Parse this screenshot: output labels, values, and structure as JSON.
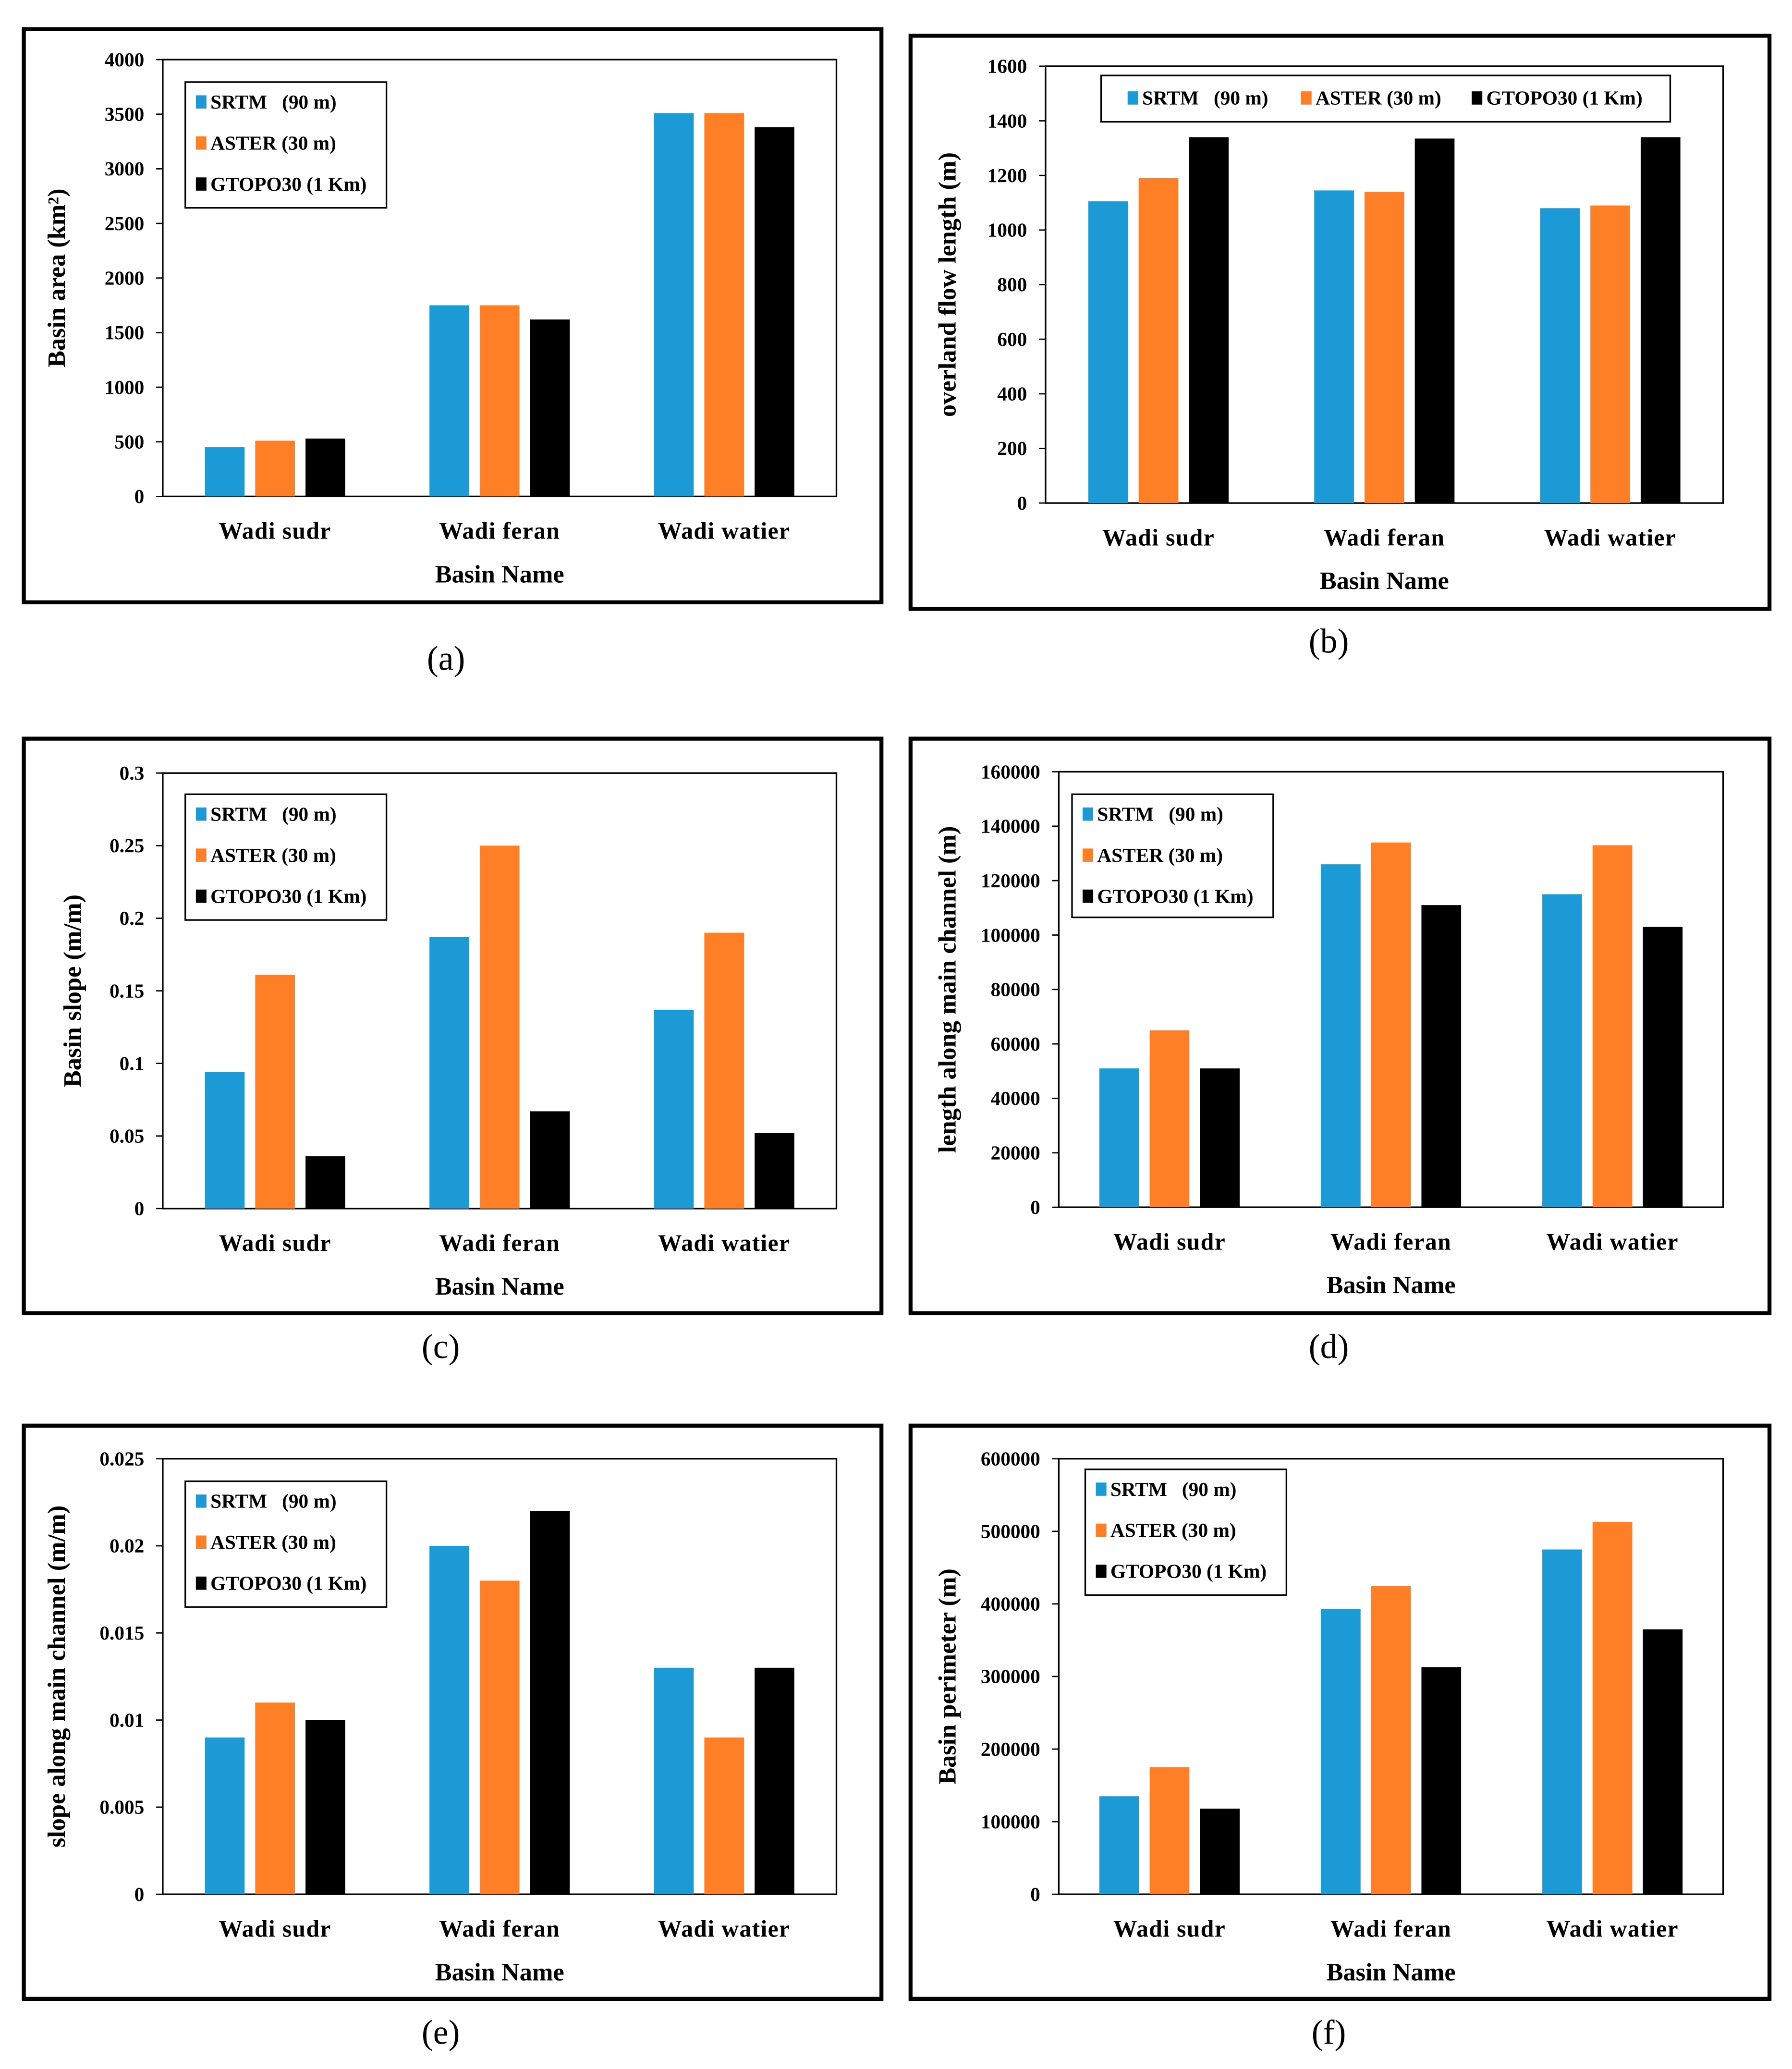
{
  "colors": {
    "SRTM": "#1B9AD6",
    "ASTER": "#FF7F27",
    "GTOPO30": "#000000"
  },
  "legend": [
    "SRTM   (90 m)",
    "ASTER (30 m)",
    "GTOPO30 (1 Km)"
  ],
  "chart_data": [
    {
      "panel": "(a)",
      "type": "bar",
      "categories": [
        "Wadi sudr",
        "Wadi feran",
        "Wadi watier"
      ],
      "xlabel": "Basin Name",
      "ylabel": "Basin area (km²)",
      "ylim": [
        0,
        4000
      ],
      "yticks": [
        "0",
        "500",
        "1000",
        "1500",
        "2000",
        "2500",
        "3000",
        "3500",
        "4000"
      ],
      "legend_position": "top-left",
      "series": [
        {
          "name": "SRTM   (90 m)",
          "values": [
            450,
            1750,
            3510
          ]
        },
        {
          "name": "ASTER (30 m)",
          "values": [
            510,
            1750,
            3510
          ]
        },
        {
          "name": "GTOPO30 (1 Km)",
          "values": [
            530,
            1620,
            3380
          ]
        }
      ]
    },
    {
      "panel": "(b)",
      "type": "bar",
      "categories": [
        "Wadi sudr",
        "Wadi feran",
        "Wadi watier"
      ],
      "xlabel": "Basin Name",
      "ylabel": "overland  flow length (m)",
      "ylim": [
        0,
        1600
      ],
      "yticks": [
        "0",
        "200",
        "400",
        "600",
        "800",
        "1000",
        "1200",
        "1400",
        "1600"
      ],
      "legend_position": "top-horizontal",
      "series": [
        {
          "name": "SRTM   (90 m)",
          "values": [
            1105,
            1145,
            1080
          ]
        },
        {
          "name": "ASTER (30 m)",
          "values": [
            1190,
            1140,
            1090
          ]
        },
        {
          "name": "GTOPO30 (1 Km)",
          "values": [
            1340,
            1335,
            1340
          ]
        }
      ]
    },
    {
      "panel": "(c)",
      "type": "bar",
      "categories": [
        "Wadi sudr",
        "Wadi feran",
        "Wadi watier"
      ],
      "xlabel": "Basin Name",
      "ylabel": "Basin slope (m/m)",
      "ylim": [
        0,
        0.3
      ],
      "yticks": [
        "0",
        "0.05",
        "0.1",
        "0.15",
        "0.2",
        "0.25",
        "0.3"
      ],
      "legend_position": "top-left",
      "series": [
        {
          "name": "SRTM   (90 m)",
          "values": [
            0.094,
            0.187,
            0.137
          ]
        },
        {
          "name": "ASTER (30 m)",
          "values": [
            0.161,
            0.25,
            0.19
          ]
        },
        {
          "name": "GTOPO30 (1 Km)",
          "values": [
            0.036,
            0.067,
            0.052
          ]
        }
      ]
    },
    {
      "panel": "(d)",
      "type": "bar",
      "categories": [
        "Wadi sudr",
        "Wadi feran",
        "Wadi watier"
      ],
      "xlabel": "Basin Name",
      "ylabel": "length along main channel  (m)",
      "ylim": [
        0,
        160000
      ],
      "yticks": [
        "0",
        "20000",
        "40000",
        "60000",
        "80000",
        "100000",
        "120000",
        "140000",
        "160000"
      ],
      "legend_position": "top-left",
      "series": [
        {
          "name": "SRTM   (90 m)",
          "values": [
            51000,
            126000,
            115000
          ]
        },
        {
          "name": "ASTER (30 m)",
          "values": [
            65000,
            134000,
            133000
          ]
        },
        {
          "name": "GTOPO30 (1 Km)",
          "values": [
            51000,
            111000,
            103000
          ]
        }
      ]
    },
    {
      "panel": "(e)",
      "type": "bar",
      "categories": [
        "Wadi sudr",
        "Wadi feran",
        "Wadi watier"
      ],
      "xlabel": "Basin Name",
      "ylabel": "slope along main channel  (m/m)",
      "ylim": [
        0,
        0.025
      ],
      "yticks": [
        "0",
        "0.005",
        "0.01",
        "0.015",
        "0.02",
        "0.025"
      ],
      "legend_position": "top-left",
      "series": [
        {
          "name": "SRTM   (90 m)",
          "values": [
            0.009,
            0.02,
            0.013
          ]
        },
        {
          "name": "ASTER (30 m)",
          "values": [
            0.011,
            0.018,
            0.009
          ]
        },
        {
          "name": "GTOPO30 (1 Km)",
          "values": [
            0.01,
            0.022,
            0.013
          ]
        }
      ]
    },
    {
      "panel": "(f)",
      "type": "bar",
      "categories": [
        "Wadi sudr",
        "Wadi feran",
        "Wadi watier"
      ],
      "xlabel": "Basin Name",
      "ylabel": "Basin perimeter (m)",
      "ylim": [
        0,
        600000
      ],
      "yticks": [
        "0",
        "100000",
        "200000",
        "300000",
        "400000",
        "500000",
        "600000"
      ],
      "legend_position": "top-left",
      "series": [
        {
          "name": "SRTM   (90 m)",
          "values": [
            135000,
            393000,
            475000
          ]
        },
        {
          "name": "ASTER (30 m)",
          "values": [
            175000,
            425000,
            513000
          ]
        },
        {
          "name": "GTOPO30 (1 Km)",
          "values": [
            118000,
            313000,
            365000
          ]
        }
      ]
    }
  ]
}
